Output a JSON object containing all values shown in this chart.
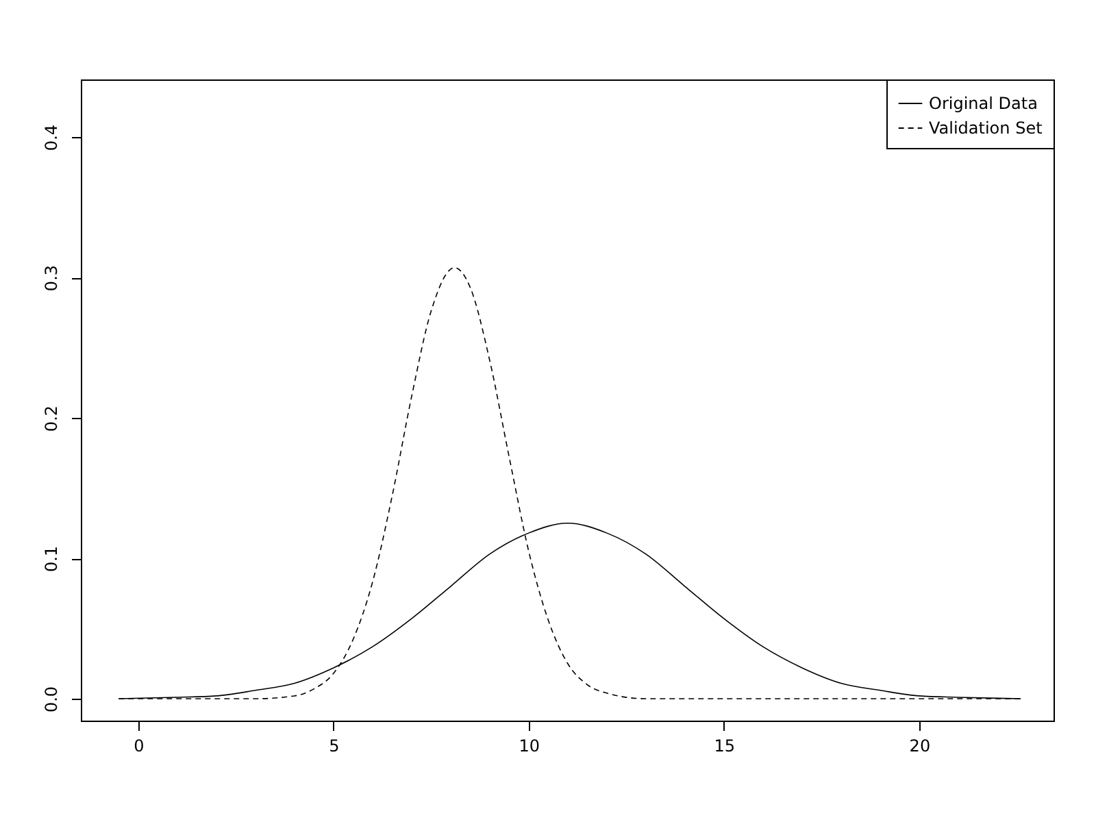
{
  "chart_data": {
    "type": "line",
    "xlim": [
      -1.47,
      23.44
    ],
    "ylim": [
      -0.0156,
      0.441
    ],
    "xticks": [
      0,
      5,
      10,
      15,
      20
    ],
    "yticks": [
      {
        "value": 0,
        "label": "0.0"
      },
      0.1,
      0.2,
      0.3,
      0.4
    ],
    "grid": false,
    "legend": "top right",
    "marker": "none",
    "series": [
      {
        "name": "Original Data",
        "color": "#000000",
        "line_style": "solid",
        "x": [
          -0.5,
          1,
          2,
          3,
          4,
          5,
          6,
          7,
          8,
          9,
          10,
          11,
          12,
          13,
          14,
          15,
          16,
          17,
          18,
          19,
          20,
          21,
          22.6
        ],
        "values": [
          0,
          0.001,
          0.002,
          0.006,
          0.011,
          0.022,
          0.037,
          0.057,
          0.08,
          0.103,
          0.118,
          0.125,
          0.118,
          0.103,
          0.08,
          0.057,
          0.037,
          0.022,
          0.011,
          0.006,
          0.002,
          0.001,
          0
        ]
      },
      {
        "name": "Validation Set",
        "color": "#000000",
        "line_style": "dashed",
        "x": [
          -0.5,
          3,
          4,
          4.5,
          5,
          5.5,
          6,
          6.5,
          7,
          7.5,
          8.1,
          8.5,
          9,
          9.5,
          10,
          10.5,
          11,
          11.5,
          12,
          13,
          22.6
        ],
        "values": [
          0,
          0,
          0.002,
          0.007,
          0.018,
          0.042,
          0.083,
          0.144,
          0.215,
          0.276,
          0.307,
          0.293,
          0.241,
          0.172,
          0.105,
          0.056,
          0.025,
          0.01,
          0.004,
          0,
          0
        ]
      }
    ]
  }
}
